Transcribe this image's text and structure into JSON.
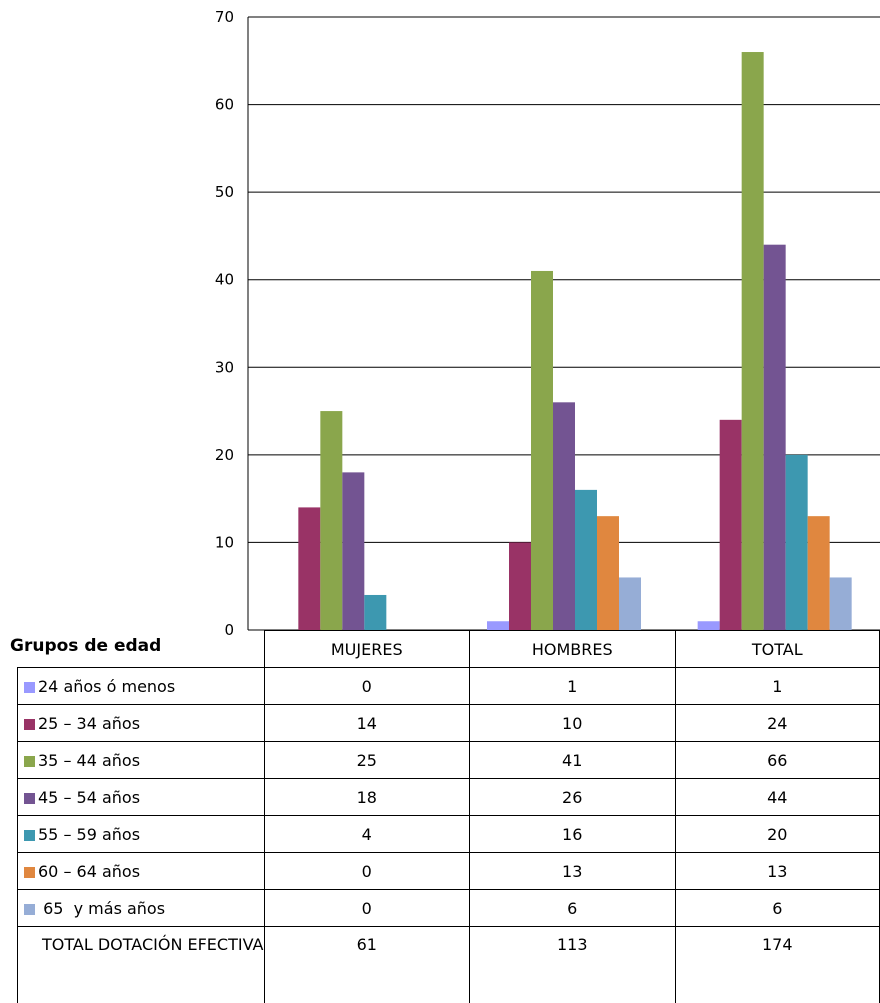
{
  "chart_data": {
    "type": "bar",
    "categories": [
      "MUJERES",
      "HOMBRES",
      "TOTAL"
    ],
    "series": [
      {
        "name": "24 años ó menos",
        "values": [
          0,
          1,
          1
        ],
        "color": "#9999FF"
      },
      {
        "name": "25 – 34 años",
        "values": [
          14,
          10,
          24
        ],
        "color": "#993366"
      },
      {
        "name": "35 – 44 años",
        "values": [
          25,
          41,
          66
        ],
        "color": "#8AA64C"
      },
      {
        "name": "45 – 54 años",
        "values": [
          18,
          26,
          44
        ],
        "color": "#735492"
      },
      {
        "name": "55 – 59 años",
        "values": [
          4,
          16,
          20
        ],
        "color": "#3D98B0"
      },
      {
        "name": "60 – 64 años",
        "values": [
          0,
          13,
          13
        ],
        "color": "#E0873F"
      },
      {
        "name": " 65  y más años",
        "values": [
          0,
          6,
          6
        ],
        "color": "#96ADD6"
      }
    ],
    "yticks": [
      "0",
      "10",
      "20",
      "30",
      "40",
      "50",
      "60",
      "70"
    ],
    "ylim": [
      0,
      70
    ],
    "grid": true,
    "legend": "data table below chart"
  },
  "table": {
    "title": "Grupos de edad",
    "total_label": "TOTAL DOTACIÓN EFECTIVA",
    "totals": [
      "61",
      "113",
      "174"
    ]
  }
}
